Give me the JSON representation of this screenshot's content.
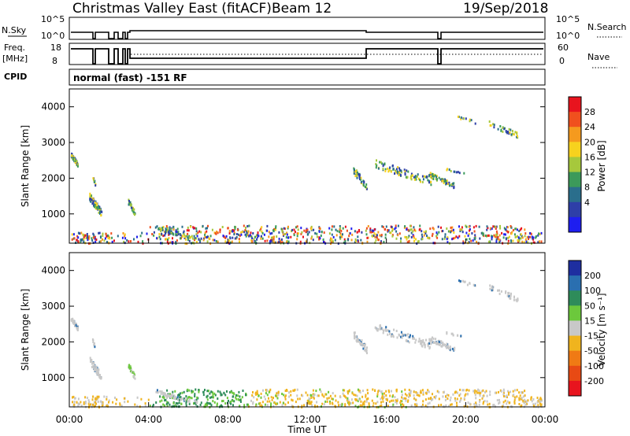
{
  "header": {
    "title": "Christmas Valley East (fitACF)",
    "beam": "Beam 12",
    "date": "19/Sep/2018"
  },
  "strips": {
    "nsky_label": "N.Sky",
    "nsky_ticks": [
      "10^5",
      "10^0"
    ],
    "nsearch_label": "N.Search",
    "nsearch_ticks": [
      "10^5",
      "10^0"
    ],
    "freq_label_1": "Freq.",
    "freq_label_2": "[MHz]",
    "freq_ticks": [
      "18",
      "8"
    ],
    "nave_label": "Nave",
    "nave_ticks": [
      "60",
      "0"
    ],
    "cpid_label": "CPID",
    "cpid_value": "normal (fast) -151 RF"
  },
  "chart_data": [
    {
      "type": "heatmap",
      "name": "Power",
      "ylabel": "Slant Range [km]",
      "y_ticks": [
        "4000",
        "3000",
        "2000",
        "1000"
      ],
      "y_tick_values": [
        4000,
        3000,
        2000,
        1000
      ],
      "ylim": [
        180,
        4500
      ],
      "colorbar_label": "Power [dB]",
      "colorbar_ticks": [
        "28",
        "24",
        "20",
        "16",
        "12",
        "8",
        "4"
      ],
      "colorbar_colors": [
        "#e8141e",
        "#f0501e",
        "#f59a1e",
        "#f7d21e",
        "#a6c83c",
        "#3c9a5a",
        "#2a6e8c",
        "#2e3fa8",
        "#1e1ef0"
      ]
    },
    {
      "type": "heatmap",
      "name": "Velocity",
      "ylabel": "Slant Range [km]",
      "y_ticks": [
        "4000",
        "3000",
        "2000",
        "1000"
      ],
      "y_tick_values": [
        4000,
        3000,
        2000,
        1000
      ],
      "ylim": [
        180,
        4500
      ],
      "colorbar_label": "Velocity [m s⁻¹]",
      "colorbar_ticks": [
        "200",
        "100",
        "50",
        "15",
        "-15",
        "-50",
        "-100",
        "-200"
      ],
      "colorbar_colors": [
        "#1e2ea0",
        "#2a6fb0",
        "#2e8c5a",
        "#6cc83c",
        "#c8c8c8",
        "#f0b41e",
        "#f07a14",
        "#e84a14",
        "#e8141e"
      ]
    }
  ],
  "xaxis": {
    "ticks": [
      "00:00",
      "04:00",
      "08:00",
      "12:00",
      "16:00",
      "20:00",
      "00:00"
    ],
    "label": "Time UT",
    "xlim": [
      0,
      24
    ]
  }
}
